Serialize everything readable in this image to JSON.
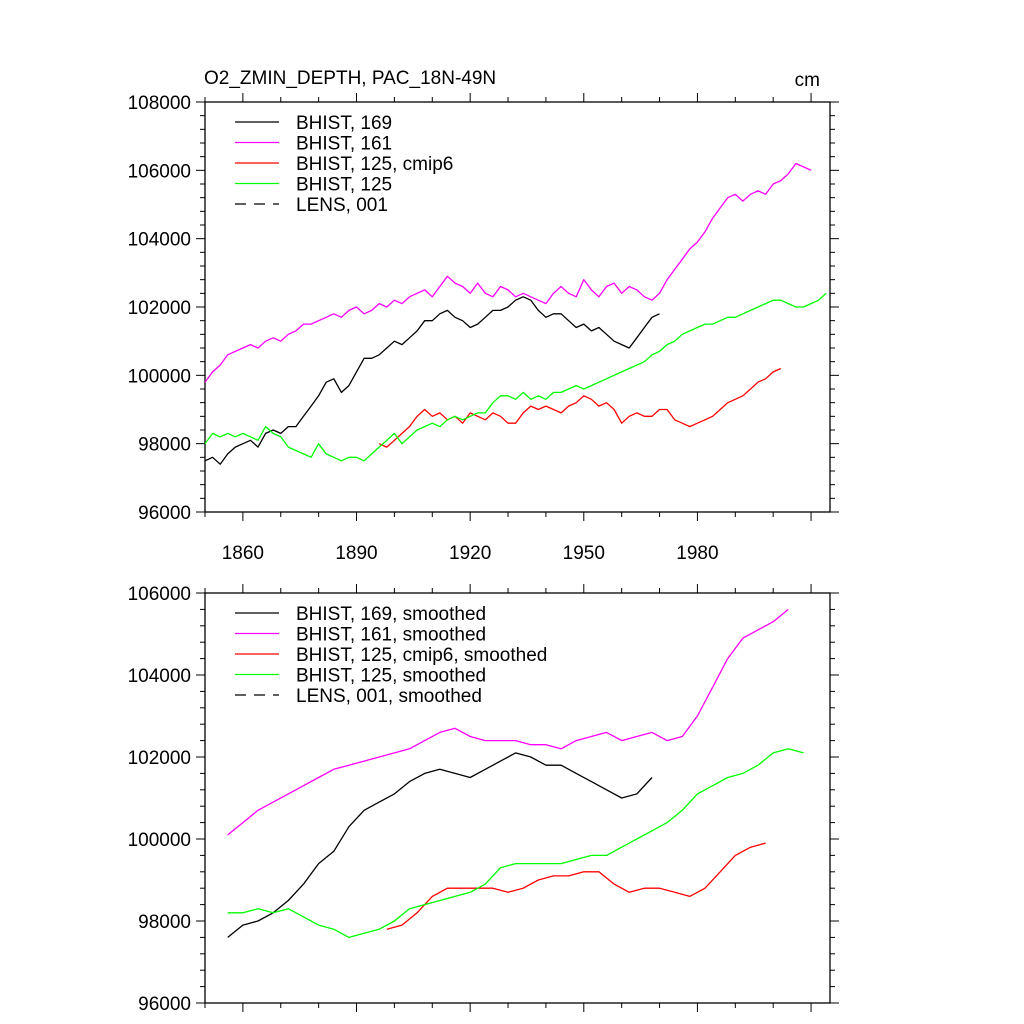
{
  "chart_data": [
    {
      "type": "line",
      "title": "O2_ZMIN_DEPTH, PAC_18N-49N",
      "units": "cm",
      "xlim": [
        1850,
        2015
      ],
      "ylim": [
        96000,
        108000
      ],
      "x_ticks": [
        1860,
        1890,
        1920,
        1950,
        1980
      ],
      "y_ticks": [
        96000,
        98000,
        100000,
        102000,
        104000,
        106000,
        108000
      ],
      "legend_position": "top-left",
      "series": [
        {
          "name": "BHIST, 169",
          "color": "#000000",
          "dash": "solid",
          "x": [
            1850,
            1852,
            1854,
            1856,
            1858,
            1860,
            1862,
            1864,
            1866,
            1868,
            1870,
            1872,
            1874,
            1876,
            1878,
            1880,
            1882,
            1884,
            1886,
            1888,
            1890,
            1892,
            1894,
            1896,
            1898,
            1900,
            1902,
            1904,
            1906,
            1908,
            1910,
            1912,
            1914,
            1916,
            1918,
            1920,
            1922,
            1924,
            1926,
            1928,
            1930,
            1932,
            1934,
            1936,
            1938,
            1940,
            1942,
            1944,
            1946,
            1948,
            1950,
            1952,
            1954,
            1956,
            1958,
            1960,
            1962,
            1964,
            1966,
            1968,
            1970
          ],
          "y": [
            97500,
            97600,
            97400,
            97700,
            97900,
            98000,
            98100,
            97900,
            98300,
            98400,
            98300,
            98500,
            98500,
            98800,
            99100,
            99400,
            99800,
            99900,
            99500,
            99700,
            100100,
            100500,
            100500,
            100600,
            100800,
            101000,
            100900,
            101100,
            101300,
            101600,
            101600,
            101800,
            101900,
            101700,
            101600,
            101400,
            101500,
            101700,
            101900,
            101900,
            102000,
            102200,
            102300,
            102200,
            101900,
            101700,
            101800,
            101800,
            101600,
            101400,
            101500,
            101300,
            101400,
            101200,
            101000,
            100900,
            100800,
            101100,
            101400,
            101700,
            101800
          ]
        },
        {
          "name": "BHIST, 161",
          "color": "#ff00ff",
          "dash": "solid",
          "x": [
            1850,
            1852,
            1854,
            1856,
            1858,
            1860,
            1862,
            1864,
            1866,
            1868,
            1870,
            1872,
            1874,
            1876,
            1878,
            1880,
            1882,
            1884,
            1886,
            1888,
            1890,
            1892,
            1894,
            1896,
            1898,
            1900,
            1902,
            1904,
            1906,
            1908,
            1910,
            1912,
            1914,
            1916,
            1918,
            1920,
            1922,
            1924,
            1926,
            1928,
            1930,
            1932,
            1934,
            1936,
            1938,
            1940,
            1942,
            1944,
            1946,
            1948,
            1950,
            1952,
            1954,
            1956,
            1958,
            1960,
            1962,
            1964,
            1966,
            1968,
            1970,
            1972,
            1974,
            1976,
            1978,
            1980,
            1982,
            1984,
            1986,
            1988,
            1990,
            1992,
            1994,
            1996,
            1998,
            2000,
            2002,
            2004,
            2006,
            2008,
            2010
          ],
          "y": [
            99800,
            100100,
            100300,
            100600,
            100700,
            100800,
            100900,
            100800,
            101000,
            101100,
            101000,
            101200,
            101300,
            101500,
            101500,
            101600,
            101700,
            101800,
            101700,
            101900,
            102000,
            101800,
            101900,
            102100,
            102000,
            102200,
            102100,
            102300,
            102400,
            102500,
            102300,
            102600,
            102900,
            102700,
            102600,
            102400,
            102700,
            102400,
            102300,
            102600,
            102500,
            102300,
            102400,
            102300,
            102200,
            102100,
            102400,
            102600,
            102400,
            102300,
            102800,
            102500,
            102300,
            102600,
            102700,
            102400,
            102600,
            102500,
            102300,
            102200,
            102400,
            102800,
            103100,
            103400,
            103700,
            103900,
            104200,
            104600,
            104900,
            105200,
            105300,
            105100,
            105300,
            105400,
            105300,
            105600,
            105700,
            105900,
            106200,
            106100,
            106000
          ]
        },
        {
          "name": "BHIST, 125, cmip6",
          "color": "#ff0000",
          "dash": "solid",
          "x": [
            1896,
            1898,
            1900,
            1902,
            1904,
            1906,
            1908,
            1910,
            1912,
            1914,
            1916,
            1918,
            1920,
            1922,
            1924,
            1926,
            1928,
            1930,
            1932,
            1934,
            1936,
            1938,
            1940,
            1942,
            1944,
            1946,
            1948,
            1950,
            1952,
            1954,
            1956,
            1958,
            1960,
            1962,
            1964,
            1966,
            1968,
            1970,
            1972,
            1974,
            1976,
            1978,
            1980,
            1982,
            1984,
            1986,
            1988,
            1990,
            1992,
            1994,
            1996,
            1998,
            2000,
            2002
          ],
          "y": [
            98000,
            97900,
            98100,
            98300,
            98500,
            98800,
            99000,
            98800,
            98900,
            98700,
            98800,
            98600,
            98900,
            98800,
            98700,
            98900,
            98800,
            98600,
            98600,
            98900,
            99100,
            99000,
            99100,
            99000,
            98900,
            99100,
            99200,
            99400,
            99300,
            99100,
            99200,
            99000,
            98600,
            98800,
            98900,
            98800,
            98800,
            99000,
            99000,
            98700,
            98600,
            98500,
            98600,
            98700,
            98800,
            99000,
            99200,
            99300,
            99400,
            99600,
            99800,
            99900,
            100100,
            100200
          ]
        },
        {
          "name": "BHIST, 125",
          "color": "#00ff00",
          "dash": "solid",
          "x": [
            1850,
            1852,
            1854,
            1856,
            1858,
            1860,
            1862,
            1864,
            1866,
            1868,
            1870,
            1872,
            1874,
            1876,
            1878,
            1880,
            1882,
            1884,
            1886,
            1888,
            1890,
            1892,
            1894,
            1896,
            1898,
            1900,
            1902,
            1904,
            1906,
            1908,
            1910,
            1912,
            1914,
            1916,
            1918,
            1920,
            1922,
            1924,
            1926,
            1928,
            1930,
            1932,
            1934,
            1936,
            1938,
            1940,
            1942,
            1944,
            1946,
            1948,
            1950,
            1952,
            1954,
            1956,
            1958,
            1960,
            1962,
            1964,
            1966,
            1968,
            1970,
            1972,
            1974,
            1976,
            1978,
            1980,
            1982,
            1984,
            1986,
            1988,
            1990,
            1992,
            1994,
            1996,
            1998,
            2000,
            2002,
            2004,
            2006,
            2008,
            2010,
            2012,
            2014
          ],
          "y": [
            98000,
            98300,
            98200,
            98300,
            98200,
            98300,
            98200,
            98100,
            98500,
            98300,
            98200,
            97900,
            97800,
            97700,
            97600,
            98000,
            97700,
            97600,
            97500,
            97600,
            97600,
            97500,
            97700,
            97900,
            98100,
            98300,
            98000,
            98200,
            98400,
            98500,
            98600,
            98500,
            98700,
            98800,
            98700,
            98800,
            98900,
            98900,
            99200,
            99400,
            99400,
            99300,
            99500,
            99300,
            99400,
            99300,
            99500,
            99500,
            99600,
            99700,
            99600,
            99700,
            99800,
            99900,
            100000,
            100100,
            100200,
            100300,
            100400,
            100600,
            100700,
            100900,
            101000,
            101200,
            101300,
            101400,
            101500,
            101500,
            101600,
            101700,
            101700,
            101800,
            101900,
            102000,
            102100,
            102200,
            102200,
            102100,
            102000,
            102000,
            102100,
            102200,
            102400
          ]
        },
        {
          "name": "LENS, 001",
          "color": "#000000",
          "dash": "dashed",
          "x": [],
          "y": []
        }
      ]
    },
    {
      "type": "line",
      "title": "",
      "xlim": [
        1850,
        2015
      ],
      "ylim": [
        96000,
        106000
      ],
      "y_ticks": [
        96000,
        98000,
        100000,
        102000,
        104000,
        106000
      ],
      "legend_position": "top-left",
      "series": [
        {
          "name": "BHIST, 169, smoothed",
          "color": "#000000",
          "dash": "solid",
          "x": [
            1856,
            1860,
            1864,
            1868,
            1872,
            1876,
            1880,
            1884,
            1888,
            1892,
            1896,
            1900,
            1904,
            1908,
            1912,
            1916,
            1920,
            1924,
            1928,
            1932,
            1936,
            1940,
            1944,
            1948,
            1952,
            1956,
            1960,
            1964,
            1968
          ],
          "y": [
            97600,
            97900,
            98000,
            98200,
            98500,
            98900,
            99400,
            99700,
            100300,
            100700,
            100900,
            101100,
            101400,
            101600,
            101700,
            101600,
            101500,
            101700,
            101900,
            102100,
            102000,
            101800,
            101800,
            101600,
            101400,
            101200,
            101000,
            101100,
            101500
          ]
        },
        {
          "name": "BHIST, 161, smoothed",
          "color": "#ff00ff",
          "dash": "solid",
          "x": [
            1856,
            1860,
            1864,
            1868,
            1872,
            1876,
            1880,
            1884,
            1888,
            1892,
            1896,
            1900,
            1904,
            1908,
            1912,
            1916,
            1920,
            1924,
            1928,
            1932,
            1936,
            1940,
            1944,
            1948,
            1952,
            1956,
            1960,
            1964,
            1968,
            1972,
            1976,
            1980,
            1984,
            1988,
            1992,
            1996,
            2000,
            2004
          ],
          "y": [
            100100,
            100400,
            100700,
            100900,
            101100,
            101300,
            101500,
            101700,
            101800,
            101900,
            102000,
            102100,
            102200,
            102400,
            102600,
            102700,
            102500,
            102400,
            102400,
            102400,
            102300,
            102300,
            102200,
            102400,
            102500,
            102600,
            102400,
            102500,
            102600,
            102400,
            102500,
            103000,
            103700,
            104400,
            104900,
            105100,
            105300,
            105600
          ]
        },
        {
          "name": "BHIST, 125, cmip6, smoothed",
          "color": "#ff0000",
          "dash": "solid",
          "x": [
            1898,
            1902,
            1906,
            1910,
            1914,
            1918,
            1922,
            1926,
            1930,
            1934,
            1938,
            1942,
            1946,
            1950,
            1954,
            1958,
            1962,
            1966,
            1970,
            1974,
            1978,
            1982,
            1986,
            1990,
            1994,
            1998
          ],
          "y": [
            97800,
            97900,
            98200,
            98600,
            98800,
            98800,
            98800,
            98800,
            98700,
            98800,
            99000,
            99100,
            99100,
            99200,
            99200,
            98900,
            98700,
            98800,
            98800,
            98700,
            98600,
            98800,
            99200,
            99600,
            99800,
            99900
          ]
        },
        {
          "name": "BHIST, 125, smoothed",
          "color": "#00ff00",
          "dash": "solid",
          "x": [
            1856,
            1860,
            1864,
            1868,
            1872,
            1876,
            1880,
            1884,
            1888,
            1892,
            1896,
            1900,
            1904,
            1908,
            1912,
            1916,
            1920,
            1924,
            1928,
            1932,
            1936,
            1940,
            1944,
            1948,
            1952,
            1956,
            1960,
            1964,
            1968,
            1972,
            1976,
            1980,
            1984,
            1988,
            1992,
            1996,
            2000,
            2004,
            2008
          ],
          "y": [
            98200,
            98200,
            98300,
            98200,
            98300,
            98100,
            97900,
            97800,
            97600,
            97700,
            97800,
            98000,
            98300,
            98400,
            98500,
            98600,
            98700,
            98900,
            99300,
            99400,
            99400,
            99400,
            99400,
            99500,
            99600,
            99600,
            99800,
            100000,
            100200,
            100400,
            100700,
            101100,
            101300,
            101500,
            101600,
            101800,
            102100,
            102200,
            102100
          ]
        },
        {
          "name": "LENS, 001, smoothed",
          "color": "#000000",
          "dash": "dashed",
          "x": [],
          "y": []
        }
      ]
    }
  ]
}
